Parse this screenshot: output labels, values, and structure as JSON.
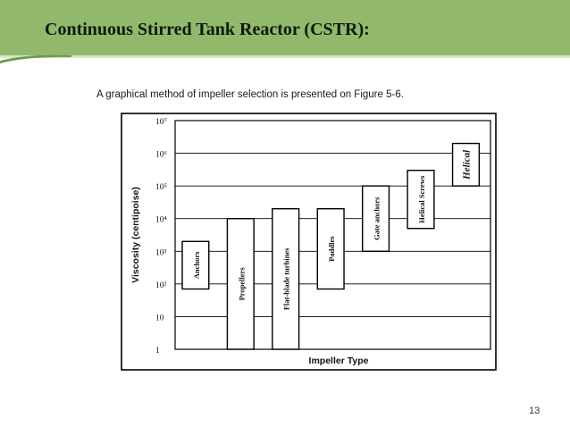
{
  "slide": {
    "title": "Continuous Stirred Tank Reactor (CSTR):",
    "caption": "A graphical method of impeller selection is presented on Figure 5-6.",
    "page_number": "13"
  },
  "colors": {
    "header": "#92b86b",
    "header_line": "#d8e7c6",
    "bar_fill": "#ffffff",
    "stroke": "#000000"
  },
  "chart_data": {
    "type": "bar",
    "xlabel": "Impeller Type",
    "ylabel": "Viscosity (centipoise)",
    "yscale": "log",
    "ylim": [
      1,
      10000000
    ],
    "ytick_labels": [
      "1",
      "10",
      "10²",
      "10³",
      "10⁴",
      "10⁵",
      "10⁶",
      "10⁷"
    ],
    "grid": true,
    "categories": [
      "Anchors",
      "Propellers",
      "Flat-blade turbines",
      "Paddles",
      "Gate anchors",
      "Helical Screws",
      "Helical"
    ],
    "ranges": [
      {
        "low": 70,
        "high": 2000
      },
      {
        "low": 1,
        "high": 10000
      },
      {
        "low": 1,
        "high": 20000
      },
      {
        "low": 70,
        "high": 20000
      },
      {
        "low": 1000,
        "high": 100000
      },
      {
        "low": 5000,
        "high": 300000
      },
      {
        "low": 100000,
        "high": 2000000
      }
    ]
  }
}
